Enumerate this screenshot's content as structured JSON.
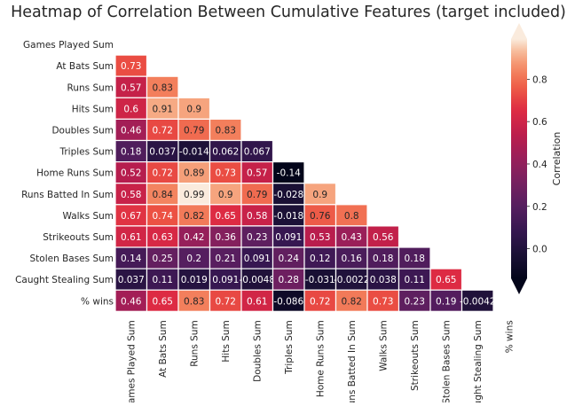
{
  "chart_data": {
    "type": "heatmap",
    "title": "Heatmap of Correlation Between Cumulative Features (target included)",
    "row_labels": [
      "Games Played Sum",
      "At Bats Sum",
      "Runs Sum",
      "Hits Sum",
      "Doubles Sum",
      "Triples Sum",
      "Home Runs Sum",
      "Runs Batted In Sum",
      "Walks Sum",
      "Strikeouts Sum",
      "Stolen Bases Sum",
      "Caught Stealing Sum",
      "% wins"
    ],
    "col_labels": [
      "Games Played Sum",
      "At Bats Sum",
      "Runs Sum",
      "Hits Sum",
      "Doubles Sum",
      "Triples Sum",
      "Home Runs Sum",
      "Runs Batted In Sum",
      "Walks Sum",
      "Strikeouts Sum",
      "Stolen Bases Sum",
      "Caught Stealing Sum",
      "% wins"
    ],
    "mask": "upper-triangle-including-diagonal",
    "values": [
      [],
      [
        0.73
      ],
      [
        0.57,
        0.83
      ],
      [
        0.6,
        0.91,
        0.9
      ],
      [
        0.46,
        0.72,
        0.79,
        0.83
      ],
      [
        0.18,
        0.037,
        -0.014,
        0.062,
        0.067
      ],
      [
        0.52,
        0.72,
        0.89,
        0.73,
        0.57,
        -0.14
      ],
      [
        0.58,
        0.84,
        0.99,
        0.9,
        0.79,
        -0.028,
        0.9
      ],
      [
        0.67,
        0.74,
        0.82,
        0.65,
        0.58,
        -0.018,
        0.76,
        0.8
      ],
      [
        0.61,
        0.63,
        0.42,
        0.36,
        0.23,
        0.091,
        0.53,
        0.43,
        0.56
      ],
      [
        0.14,
        0.25,
        0.2,
        0.21,
        0.091,
        0.24,
        0.12,
        0.16,
        0.18,
        0.18
      ],
      [
        0.037,
        0.11,
        0.019,
        0.091,
        -0.0048,
        0.28,
        -0.031,
        -0.0022,
        0.038,
        0.11,
        0.65
      ],
      [
        0.46,
        0.65,
        0.83,
        0.72,
        0.61,
        -0.086,
        0.72,
        0.82,
        0.73,
        0.23,
        0.19,
        -0.0042
      ]
    ],
    "colorbar": {
      "label": "Correlation",
      "vmin": -0.14,
      "vmax": 0.99,
      "ticks": [
        0.0,
        0.2,
        0.4,
        0.6,
        0.8
      ],
      "tick_labels": [
        "0.0",
        "0.2",
        "0.4",
        "0.6",
        "0.8"
      ],
      "extend": "both",
      "colormap": "rocket"
    }
  }
}
